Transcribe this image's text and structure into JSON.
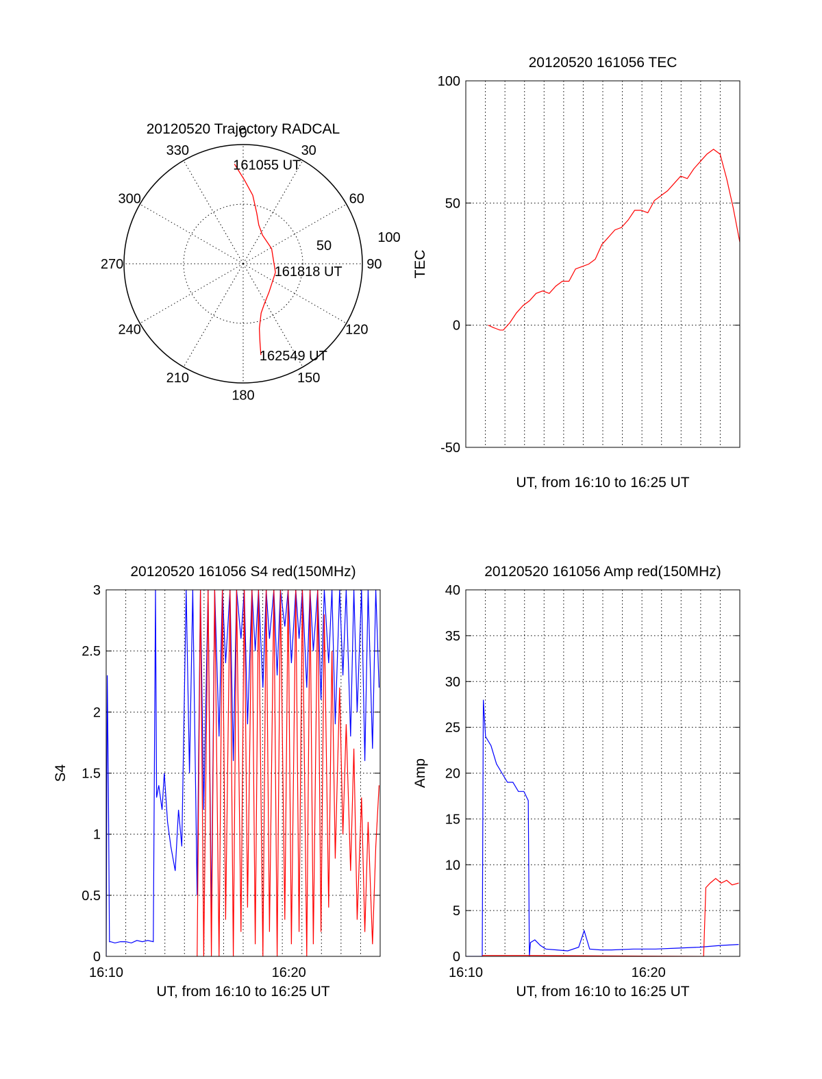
{
  "chart_data": [
    {
      "type": "polar",
      "title": "20120520 Trajectory RADCAL",
      "angle_ticks": [
        "0",
        "30",
        "60",
        "90",
        "120",
        "150",
        "180",
        "210",
        "240",
        "270",
        "300",
        "330"
      ],
      "radial_ticks": [
        "50",
        "100"
      ],
      "rmax": 100,
      "series": [
        {
          "color": "#ff0000",
          "points": [
            [
              -5,
              84
            ],
            [
              1,
              70
            ],
            [
              8,
              58
            ],
            [
              15,
              44
            ],
            [
              22,
              35
            ],
            [
              34,
              29
            ],
            [
              62,
              27
            ],
            [
              105,
              28
            ],
            [
              137,
              32
            ],
            [
              152,
              38
            ],
            [
              160,
              44
            ],
            [
              166,
              56
            ],
            [
              168,
              68
            ],
            [
              169,
              78
            ]
          ]
        }
      ],
      "annotations": [
        {
          "text": "161055 UT",
          "az": -5,
          "r": 84
        },
        {
          "text": "161818 UT",
          "az": 102,
          "r": 28
        },
        {
          "text": "162549 UT",
          "az": 169,
          "r": 78
        }
      ]
    },
    {
      "type": "line",
      "title": "20120520 161056 TEC",
      "xlabel": "UT, from 16:10 to 16:25 UT",
      "ylabel": "TEC",
      "xlim": [
        16.083,
        16.5
      ],
      "ylim": [
        -50,
        100
      ],
      "yticks": [
        "100",
        "50",
        "0",
        "-50"
      ],
      "xticklabels": [],
      "grid": true,
      "series": [
        {
          "color": "#ff0000",
          "x": [
            16.117,
            16.125,
            16.13,
            16.135,
            16.14,
            16.15,
            16.16,
            16.17,
            16.18,
            16.19,
            16.2,
            16.21,
            16.22,
            16.23,
            16.24,
            16.25,
            16.26,
            16.27,
            16.28,
            16.29,
            16.3,
            16.31,
            16.32,
            16.33,
            16.34,
            16.35,
            16.36,
            16.37,
            16.38,
            16.39,
            16.4,
            16.41,
            16.42,
            16.43,
            16.44,
            16.45,
            16.46,
            16.47,
            16.48,
            16.49,
            16.5
          ],
          "y": [
            0,
            -1,
            -1.5,
            -2,
            -2,
            1,
            5,
            8,
            10,
            13,
            14,
            13,
            16,
            18,
            18,
            23,
            24,
            25,
            27,
            33,
            36,
            39,
            40,
            43,
            47,
            47,
            46,
            51,
            53,
            55,
            58,
            61,
            60,
            64,
            67,
            70,
            72,
            70,
            60,
            48,
            34
          ]
        }
      ]
    },
    {
      "type": "line",
      "title": "20120520 161056 S4 red(150MHz)",
      "xlabel": "UT, from 16:10 to 16:25 UT",
      "ylabel": "S4",
      "xlim": [
        16.167,
        16.417
      ],
      "ylim": [
        0,
        3
      ],
      "yticks": [
        "3",
        "2.5",
        "2",
        "1.5",
        "1",
        "0.5",
        "0"
      ],
      "xticklabels": [
        "16:10",
        "16:20"
      ],
      "grid": true,
      "series": [
        {
          "color": "#0000ff",
          "x": [
            16.167,
            16.168,
            16.169,
            16.17,
            16.171,
            16.175,
            16.18,
            16.185,
            16.19,
            16.195,
            16.2,
            16.205,
            16.21,
            16.212,
            16.213,
            16.215,
            16.218,
            16.22,
            16.223,
            16.226,
            16.23,
            16.233,
            16.236,
            16.24,
            16.243,
            16.246,
            16.25,
            16.253,
            16.256,
            16.26,
            16.263,
            16.266,
            16.27,
            16.273,
            16.276,
            16.28,
            16.283,
            16.286,
            16.29,
            16.293,
            16.296,
            16.3,
            16.303,
            16.306,
            16.31,
            16.313,
            16.316,
            16.32,
            16.323,
            16.326,
            16.33,
            16.333,
            16.336,
            16.34,
            16.343,
            16.346,
            16.35,
            16.353,
            16.356,
            16.36,
            16.363,
            16.366,
            16.37,
            16.373,
            16.376,
            16.38,
            16.383,
            16.386,
            16.39,
            16.393,
            16.396,
            16.4,
            16.403,
            16.406,
            16.41,
            16.413,
            16.416
          ],
          "y": [
            0,
            2.3,
            1.4,
            0.12,
            0.12,
            0.11,
            0.12,
            0.12,
            0.11,
            0.13,
            0.12,
            0.13,
            0.12,
            3.0,
            1.3,
            1.4,
            1.2,
            1.5,
            1.1,
            0.9,
            0.7,
            1.2,
            0.9,
            3.0,
            1.5,
            3.0,
            0.5,
            3.0,
            1.2,
            3.0,
            0.3,
            3.0,
            1.8,
            3.0,
            2.4,
            3.0,
            1.6,
            3.0,
            2.6,
            3.0,
            1.9,
            3.0,
            2.5,
            3.0,
            2.2,
            3.0,
            2.6,
            3.0,
            2.3,
            3.0,
            2.7,
            3.0,
            2.4,
            3.0,
            2.6,
            3.0,
            2.2,
            3.0,
            2.5,
            3.0,
            2.1,
            3.0,
            2.4,
            3.0,
            1.9,
            3.0,
            2.3,
            3.0,
            1.8,
            3.0,
            2.0,
            3.0,
            1.6,
            3.0,
            1.7,
            3.0,
            2.2
          ]
        },
        {
          "color": "#ff0000",
          "x": [
            16.25,
            16.253,
            16.256,
            16.26,
            16.263,
            16.266,
            16.27,
            16.273,
            16.276,
            16.28,
            16.283,
            16.286,
            16.29,
            16.293,
            16.296,
            16.3,
            16.303,
            16.306,
            16.31,
            16.313,
            16.316,
            16.32,
            16.323,
            16.326,
            16.33,
            16.333,
            16.336,
            16.34,
            16.343,
            16.346,
            16.35,
            16.353,
            16.356,
            16.36,
            16.363,
            16.366,
            16.37,
            16.373,
            16.376,
            16.38,
            16.383,
            16.386,
            16.39,
            16.393,
            16.396,
            16.4,
            16.403,
            16.406,
            16.41,
            16.413,
            16.416
          ],
          "y": [
            0,
            3.0,
            0,
            3.0,
            0,
            3.0,
            0,
            3.0,
            0.3,
            3.0,
            0,
            3.0,
            0.2,
            3.0,
            0.4,
            3.0,
            0.1,
            3.0,
            0,
            3.0,
            0.2,
            3.0,
            0,
            3.0,
            0.3,
            3.0,
            0.1,
            3.0,
            0.2,
            3.0,
            0,
            3.0,
            0.1,
            3.0,
            0.2,
            2.8,
            0.4,
            2.5,
            0.8,
            2.2,
            1.0,
            1.9,
            0.7,
            1.7,
            0.3,
            1.3,
            0.2,
            1.1,
            0.1,
            0.9,
            1.4
          ]
        }
      ]
    },
    {
      "type": "line",
      "title": "20120520 161056 Amp red(150MHz)",
      "xlabel": "UT, from 16:10 to 16:25 UT",
      "ylabel": "Amp",
      "xlim": [
        16.167,
        16.417
      ],
      "ylim": [
        0,
        40
      ],
      "yticks": [
        "40",
        "35",
        "30",
        "25",
        "20",
        "15",
        "10",
        "5",
        "0"
      ],
      "xticklabels": [
        "16:10",
        "16:20"
      ],
      "grid": true,
      "series": [
        {
          "color": "#0000ff",
          "x": [
            16.167,
            16.182,
            16.183,
            16.185,
            16.19,
            16.195,
            16.2,
            16.205,
            16.21,
            16.215,
            16.22,
            16.224,
            16.225,
            16.226,
            16.23,
            16.235,
            16.24,
            16.25,
            16.26,
            16.27,
            16.275,
            16.28,
            16.29,
            16.3,
            16.32,
            16.34,
            16.36,
            16.38,
            16.4,
            16.416
          ],
          "y": [
            0,
            0,
            28,
            24,
            23,
            21,
            20,
            19,
            19,
            18,
            18,
            17,
            0,
            1.5,
            1.8,
            1.2,
            0.8,
            0.7,
            0.6,
            1.0,
            2.8,
            0.8,
            0.7,
            0.7,
            0.8,
            0.8,
            0.9,
            1.0,
            1.2,
            1.3
          ]
        },
        {
          "color": "#ff0000",
          "x": [
            16.182,
            16.225,
            16.384,
            16.386,
            16.39,
            16.395,
            16.4,
            16.405,
            16.41,
            16.416
          ],
          "y": [
            0.1,
            0.1,
            0,
            7.5,
            8,
            8.5,
            8,
            8.3,
            7.8,
            8
          ]
        }
      ]
    }
  ]
}
